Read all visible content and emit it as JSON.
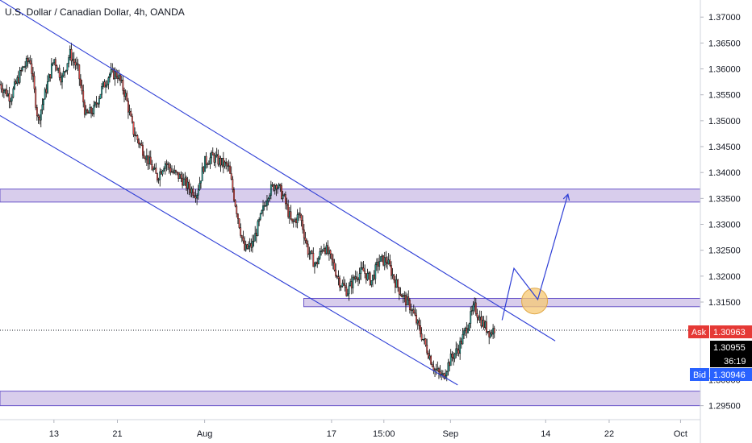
{
  "title": "U.S. Dollar / Canadian Dollar, 4h, OANDA",
  "colors": {
    "up": "#26a69a",
    "down": "#ef5350",
    "wick": "#000000",
    "trend": "#2f3fd6",
    "zone_fill": "#d1c4e9",
    "zone_edge": "#6a56c9",
    "ask": "#e53935",
    "bid": "#2962ff",
    "last": "#000000",
    "marker": "#f7c873"
  },
  "chart_data": {
    "type": "candlestick",
    "title": "U.S. Dollar / Canadian Dollar, 4h, OANDA",
    "ylim": [
      1.2923,
      1.3733
    ],
    "y_ticks": [
      "1.37000",
      "1.36500",
      "1.36000",
      "1.35500",
      "1.35000",
      "1.34500",
      "1.34000",
      "1.33500",
      "1.33000",
      "1.32500",
      "1.32000",
      "1.31500",
      "1.30000",
      "1.29500"
    ],
    "x_ticks": [
      {
        "label": "13",
        "day": 13
      },
      {
        "label": "21",
        "day": 21
      },
      {
        "label": "Aug",
        "day": 32
      },
      {
        "label": "17",
        "day": 48
      },
      {
        "label": "15:00",
        "day": 54.6
      },
      {
        "label": "Sep",
        "day": 63
      },
      {
        "label": "14",
        "day": 75
      },
      {
        "label": "22",
        "day": 83
      },
      {
        "label": "Oct",
        "day": 92
      }
    ],
    "x_range_days": [
      6.2,
      94.5
    ],
    "price_path": [
      [
        6.2,
        1.357
      ],
      [
        7.5,
        1.3545
      ],
      [
        9,
        1.36
      ],
      [
        10,
        1.362
      ],
      [
        11,
        1.35
      ],
      [
        12,
        1.356
      ],
      [
        13,
        1.362
      ],
      [
        14,
        1.358
      ],
      [
        15,
        1.363
      ],
      [
        16,
        1.36
      ],
      [
        17,
        1.351
      ],
      [
        18,
        1.352
      ],
      [
        19,
        1.356
      ],
      [
        20,
        1.359
      ],
      [
        21,
        1.359
      ],
      [
        22,
        1.355
      ],
      [
        23,
        1.348
      ],
      [
        24,
        1.345
      ],
      [
        25,
        1.342
      ],
      [
        26,
        1.339
      ],
      [
        27,
        1.342
      ],
      [
        28,
        1.34
      ],
      [
        29,
        1.339
      ],
      [
        30,
        1.337
      ],
      [
        31,
        1.336
      ],
      [
        32,
        1.342
      ],
      [
        33,
        1.343
      ],
      [
        34,
        1.342
      ],
      [
        35,
        1.341
      ],
      [
        36,
        1.333
      ],
      [
        37,
        1.325
      ],
      [
        38,
        1.326
      ],
      [
        39,
        1.331
      ],
      [
        40,
        1.336
      ],
      [
        41,
        1.338
      ],
      [
        42,
        1.335
      ],
      [
        43,
        1.33
      ],
      [
        44,
        1.332
      ],
      [
        45,
        1.325
      ],
      [
        46,
        1.322
      ],
      [
        47,
        1.326
      ],
      [
        48,
        1.323
      ],
      [
        49,
        1.319
      ],
      [
        50,
        1.317
      ],
      [
        51,
        1.32
      ],
      [
        52,
        1.321
      ],
      [
        53,
        1.319
      ],
      [
        54,
        1.323
      ],
      [
        55,
        1.323
      ],
      [
        56,
        1.319
      ],
      [
        57,
        1.316
      ],
      [
        58,
        1.314
      ],
      [
        59,
        1.31
      ],
      [
        60,
        1.306
      ],
      [
        61,
        1.302
      ],
      [
        62,
        1.3005
      ],
      [
        63,
        1.304
      ],
      [
        64,
        1.306
      ],
      [
        65,
        1.31
      ],
      [
        66,
        1.314
      ],
      [
        67,
        1.311
      ],
      [
        68,
        1.309
      ],
      [
        68.6,
        1.31
      ]
    ],
    "trend_lines": [
      {
        "x1": 6.2,
        "y1": 1.3733,
        "x2": 76.2,
        "y2": 1.3075
      },
      {
        "x1": 6.2,
        "y1": 1.351,
        "x2": 63.9,
        "y2": 1.299
      }
    ],
    "zones": [
      {
        "x_start": 6.2,
        "x_end": 94.5,
        "y_low": 1.3343,
        "y_high": 1.3368
      },
      {
        "x_start": 44.5,
        "x_end": 94.5,
        "y_low": 1.3141,
        "y_high": 1.3157
      },
      {
        "x_start": 6.2,
        "x_end": 94.5,
        "y_low": 1.295,
        "y_high": 1.2978
      }
    ],
    "projection": [
      [
        69.5,
        1.3115
      ],
      [
        71.0,
        1.3215
      ],
      [
        74.0,
        1.3155
      ],
      [
        77.8,
        1.3358
      ]
    ],
    "marker": {
      "x": 73.6,
      "y": 1.3152
    },
    "price_lines": {
      "ask": 1.30963,
      "last": 1.30955,
      "bid": 1.30946
    }
  },
  "price_badges": {
    "ask_label": "Ask",
    "ask_value": "1.30963",
    "last_value": "1.30955",
    "countdown": "36:19",
    "bid_label": "Bid",
    "bid_value": "1.30946"
  }
}
